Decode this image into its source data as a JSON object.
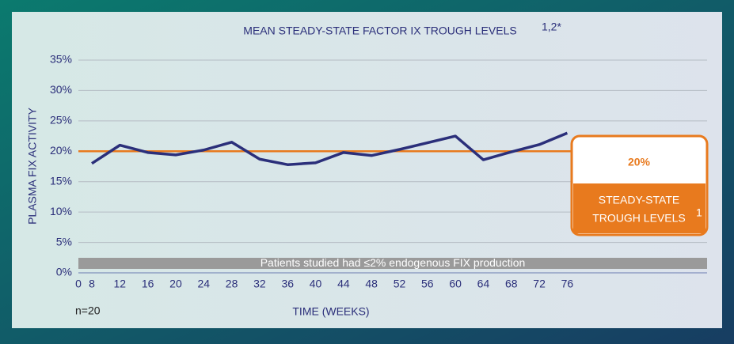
{
  "chart_data": {
    "type": "line",
    "title": "MEAN STEADY-STATE FACTOR IX TROUGH LEVELS",
    "title_superscript": "1,2*",
    "y_label": "PLASMA FIX ACTIVITY",
    "x_label": "TIME (WEEKS)",
    "note": "n=20",
    "band_annotation": "Patients studied had ≤2% endogenous FIX production",
    "x": [
      8,
      12,
      16,
      20,
      24,
      28,
      32,
      36,
      40,
      44,
      48,
      52,
      56,
      60,
      64,
      68,
      72,
      76
    ],
    "series": [
      {
        "name": "Mean trough level",
        "color": "#2b2f7a",
        "values": [
          18,
          21,
          19.8,
          19.4,
          20.2,
          21.5,
          18.7,
          17.8,
          18.1,
          19.8,
          19.3,
          20.3,
          21.4,
          22.5,
          18.6,
          19.9,
          21.1,
          23
        ]
      }
    ],
    "reference": {
      "value": 20,
      "label": "20%",
      "color": "#e87a1e",
      "caption_lines": [
        "STEADY-STATE",
        "TROUGH LEVELS"
      ],
      "caption_superscript": "1"
    },
    "xlim": [
      0,
      96
    ],
    "xticks": [
      0,
      8,
      12,
      16,
      20,
      24,
      28,
      32,
      36,
      40,
      44,
      48,
      52,
      56,
      60,
      64,
      68,
      72,
      76
    ],
    "ylim": [
      0,
      35
    ],
    "yticks": [
      {
        "value": 0,
        "label": "0%"
      },
      {
        "value": 5,
        "label": "5%"
      },
      {
        "value": 10,
        "label": "10%"
      },
      {
        "value": 15,
        "label": "15%"
      },
      {
        "value": 20,
        "label": "20%"
      },
      {
        "value": 25,
        "label": "25%"
      },
      {
        "value": 30,
        "label": "30%"
      },
      {
        "value": 35,
        "label": "35%"
      }
    ],
    "grid": true
  }
}
